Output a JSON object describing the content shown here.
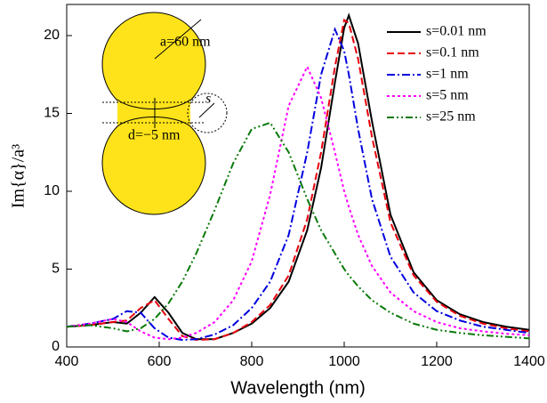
{
  "chart_data": {
    "type": "line",
    "x_label": "Wavelength (nm)",
    "y_label": "Im{α}/a³",
    "annotations": [
      "a=60 nm",
      "d=−5 nm",
      "s"
    ],
    "x": [
      400,
      450,
      500,
      530,
      560,
      590,
      620,
      650,
      680,
      720,
      760,
      800,
      840,
      880,
      920,
      950,
      980,
      1000,
      1010,
      1030,
      1060,
      1100,
      1150,
      1200,
      1250,
      1300,
      1350,
      1400
    ],
    "series": [
      {
        "name": "s=0.01 nm",
        "color": "#000000",
        "linestyle": "solid",
        "values": [
          1.3,
          1.4,
          1.6,
          1.5,
          2.2,
          3.2,
          2.2,
          0.9,
          0.5,
          0.5,
          0.9,
          1.5,
          2.5,
          4.2,
          7.5,
          11.5,
          17,
          20.5,
          21.3,
          19.5,
          14.5,
          8.5,
          4.8,
          3.0,
          2.1,
          1.6,
          1.3,
          1.1
        ]
      },
      {
        "name": "s=0.1 nm",
        "color": "#e8000b",
        "linestyle": "dashed",
        "values": [
          1.3,
          1.4,
          1.6,
          1.7,
          2.5,
          3.0,
          1.8,
          0.7,
          0.45,
          0.5,
          0.9,
          1.6,
          2.7,
          4.6,
          8.2,
          12.5,
          18,
          21,
          20.8,
          18.5,
          13.5,
          8,
          4.6,
          2.9,
          2.0,
          1.5,
          1.2,
          1.0
        ]
      },
      {
        "name": "s=1 nm",
        "color": "#0000e0",
        "linestyle": "dashdot",
        "values": [
          1.3,
          1.5,
          1.8,
          2.3,
          2.2,
          1.2,
          0.6,
          0.45,
          0.5,
          0.8,
          1.4,
          2.5,
          4.2,
          7.2,
          12.5,
          17.5,
          20.4,
          19,
          17.5,
          14,
          9.5,
          5.8,
          3.5,
          2.3,
          1.7,
          1.3,
          1.1,
          0.9
        ]
      },
      {
        "name": "s=5 nm",
        "color": "#ff00ff",
        "linestyle": "dotted",
        "values": [
          1.3,
          1.5,
          1.8,
          1.6,
          1.0,
          0.6,
          0.5,
          0.6,
          0.9,
          1.6,
          3.0,
          5.5,
          9.8,
          15.5,
          18,
          16,
          12.5,
          10,
          9,
          7.2,
          5.2,
          3.5,
          2.3,
          1.6,
          1.2,
          1.0,
          0.85,
          0.75
        ]
      },
      {
        "name": "s=25 nm",
        "color": "#0a7a0a",
        "linestyle": "dashdotdot",
        "values": [
          1.3,
          1.4,
          1.2,
          1.0,
          1.2,
          1.8,
          2.8,
          4.2,
          6,
          8.8,
          11.8,
          14,
          14.4,
          12.5,
          9.5,
          7.5,
          6,
          5,
          4.6,
          3.9,
          3.0,
          2.2,
          1.5,
          1.1,
          0.9,
          0.75,
          0.65,
          0.55
        ]
      }
    ],
    "xlim": [
      400,
      1400
    ],
    "xticks": [
      400,
      600,
      800,
      1000,
      1200,
      1400
    ],
    "ylim": [
      0,
      22
    ],
    "yticks": [
      0,
      5,
      10,
      15,
      20
    ],
    "legend": "upper right"
  }
}
